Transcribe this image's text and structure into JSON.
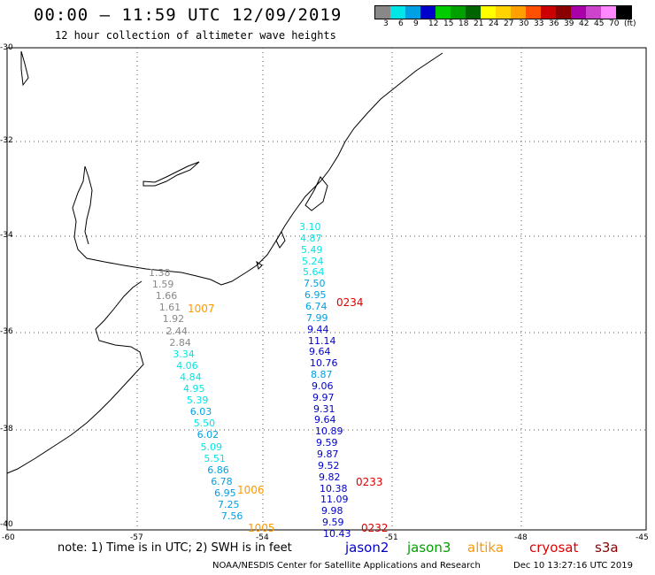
{
  "title": "00:00 – 11:59 UTC 12/09/2019",
  "subtitle": "12 hour collection of altimeter wave heights",
  "legend": {
    "colors": [
      "#888888",
      "#00e5e5",
      "#00a0e5",
      "#0000cc",
      "#00cc00",
      "#00a000",
      "#006400",
      "#ffff00",
      "#ffd400",
      "#ffa000",
      "#ff5000",
      "#cc0000",
      "#8b0000",
      "#aa00aa",
      "#cc44cc",
      "#ff88ff",
      "#000000"
    ],
    "ticks": [
      "3",
      "6",
      "9",
      "12",
      "15",
      "18",
      "21",
      "24",
      "27",
      "30",
      "33",
      "36",
      "39",
      "42",
      "45",
      "70",
      "(ft)"
    ]
  },
  "lat_labels": [
    "-30",
    "-32",
    "-34",
    "-36",
    "-38",
    "-40"
  ],
  "lon_labels": [
    "-60",
    "-57",
    "-54",
    "-51",
    "-48",
    "-45"
  ],
  "tracks": {
    "west": [
      "1.38",
      "1.59",
      "1.66",
      "1.61",
      "1.92",
      "2.44",
      "2.84",
      "3.34",
      "4.06",
      "4.84",
      "4.95",
      "5.39",
      "6.03",
      "5.50",
      "6.02",
      "5.09",
      "5.51",
      "6.86",
      "6.78",
      "6.95",
      "7.25",
      "7.56"
    ],
    "east": [
      "3.10",
      "4.87",
      "5.49",
      "5.24",
      "5.64",
      "7.50",
      "6.95",
      "6.74",
      "7.99",
      "9.44",
      "11.14",
      "9.64",
      "10.76",
      "8.87",
      "9.06",
      "9.97",
      "9.31",
      "9.64",
      "10.89",
      "9.59",
      "9.87",
      "9.52",
      "9.82",
      "10.38",
      "11.09",
      "9.98",
      "9.59",
      "10.43"
    ]
  },
  "tags": {
    "t1007": "1007",
    "t1006": "1006",
    "t1005": "1005",
    "t0234": "0234",
    "t0233": "0233",
    "t0232": "0232"
  },
  "note": "note:  1) Time is in UTC;  2) SWH is in feet",
  "satellites": {
    "jason2": "jason2",
    "jason3": "jason3",
    "altika": "altika",
    "cryosat": "cryosat",
    "s3a": "s3a"
  },
  "footer_left": "NOAA/NESDIS Center for Satellite Applications and Research",
  "footer_right": "Dec 10 13:27:16 UTC 2019"
}
